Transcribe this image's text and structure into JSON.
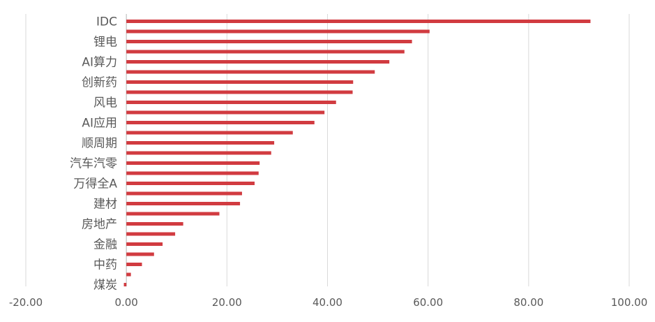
{
  "chart_data": {
    "type": "bar",
    "orientation": "horizontal",
    "title": "",
    "xlabel": "",
    "ylabel": "",
    "xlim": [
      -20,
      100
    ],
    "x_ticks": [
      "-20.00",
      "0.00",
      "20.00",
      "40.00",
      "60.00",
      "80.00",
      "100.00"
    ],
    "x_tick_values": [
      -20,
      0,
      20,
      40,
      60,
      80,
      100
    ],
    "grid": "vertical",
    "legend": "none",
    "bar_color": "#d13b40",
    "categories": [
      "IDC",
      "",
      "锂电",
      "",
      "AI算力",
      "",
      "创新药",
      "",
      "风电",
      "",
      "AI应用",
      "",
      "顺周期",
      "",
      "汽车汽零",
      "",
      "万得全A",
      "",
      "建材",
      "",
      "房地产",
      "",
      "金融",
      "",
      "中药",
      "",
      "煤炭"
    ],
    "values": [
      92.3,
      60.3,
      56.8,
      55.3,
      52.3,
      49.4,
      45.1,
      45.0,
      41.7,
      39.4,
      37.4,
      33.1,
      29.4,
      28.8,
      26.5,
      26.3,
      25.5,
      23.0,
      22.6,
      18.5,
      11.3,
      9.7,
      7.2,
      5.5,
      3.1,
      0.9,
      -0.5
    ]
  }
}
